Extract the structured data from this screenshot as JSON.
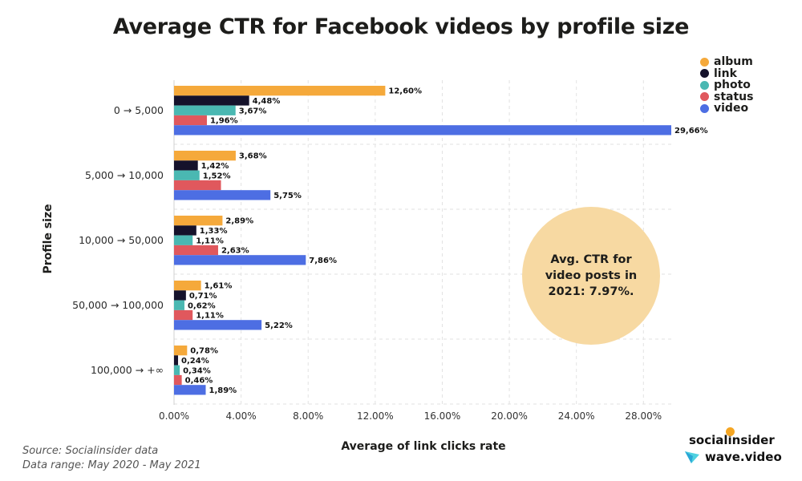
{
  "title": "Average CTR for Facebook videos by profile size",
  "legend": [
    {
      "name": "album",
      "color": "#f5a93b"
    },
    {
      "name": "link",
      "color": "#15122b"
    },
    {
      "name": "photo",
      "color": "#4ab8b2"
    },
    {
      "name": "status",
      "color": "#e0585d"
    },
    {
      "name": "video",
      "color": "#4d6ee3"
    }
  ],
  "annotation": "Avg. CTR for video posts in 2021: 7.97%.",
  "source_line1": "Source: Socialinsider data",
  "source_line2": "Data range: May 2020 - May 2021",
  "brand": {
    "name1": "socialinsider",
    "name2": "wave.video"
  },
  "chart_data": {
    "type": "bar",
    "orientation": "horizontal",
    "title": "Average CTR for Facebook videos by profile size",
    "xlabel": "Average of link clicks rate",
    "ylabel": "Profile size",
    "xlim": [
      0,
      29.66
    ],
    "xticks": [
      0,
      4,
      8,
      12,
      16,
      20,
      24,
      28
    ],
    "xtick_labels": [
      "0.00%",
      "4.00%",
      "8.00%",
      "12.00%",
      "16.00%",
      "20.00%",
      "24.00%",
      "28.00%"
    ],
    "grid": "dashed",
    "legend_position": "top-right",
    "categories": [
      "0 → 5,000",
      "5,000 → 10,000",
      "10,000 → 50,000",
      "50,000 → 100,000",
      "100,000 → +∞"
    ],
    "series": [
      {
        "name": "album",
        "color": "#f5a93b",
        "values": [
          12.6,
          3.68,
          2.89,
          1.61,
          0.78
        ],
        "labels": [
          "12,60%",
          "3,68%",
          "2,89%",
          "1,61%",
          "0,78%"
        ]
      },
      {
        "name": "link",
        "color": "#15122b",
        "values": [
          4.48,
          1.42,
          1.33,
          0.71,
          0.24
        ],
        "labels": [
          "4,48%",
          "1,42%",
          "1,33%",
          "0,71%",
          "0,24%"
        ]
      },
      {
        "name": "photo",
        "color": "#4ab8b2",
        "values": [
          3.67,
          1.52,
          1.11,
          0.62,
          0.34
        ],
        "labels": [
          "3,67%",
          "1,52%",
          "1,11%",
          "0,62%",
          "0,34%"
        ]
      },
      {
        "name": "status",
        "color": "#e0585d",
        "values": [
          1.96,
          2.8,
          2.63,
          1.11,
          0.46
        ],
        "labels": [
          "1,96%",
          "",
          "2,63%",
          "1,11%",
          "0,46%"
        ]
      },
      {
        "name": "video",
        "color": "#4d6ee3",
        "values": [
          29.66,
          5.75,
          7.86,
          5.22,
          1.89
        ],
        "labels": [
          "29,66%",
          "5,75%",
          "7,86%",
          "5,22%",
          "1,89%"
        ]
      }
    ]
  }
}
